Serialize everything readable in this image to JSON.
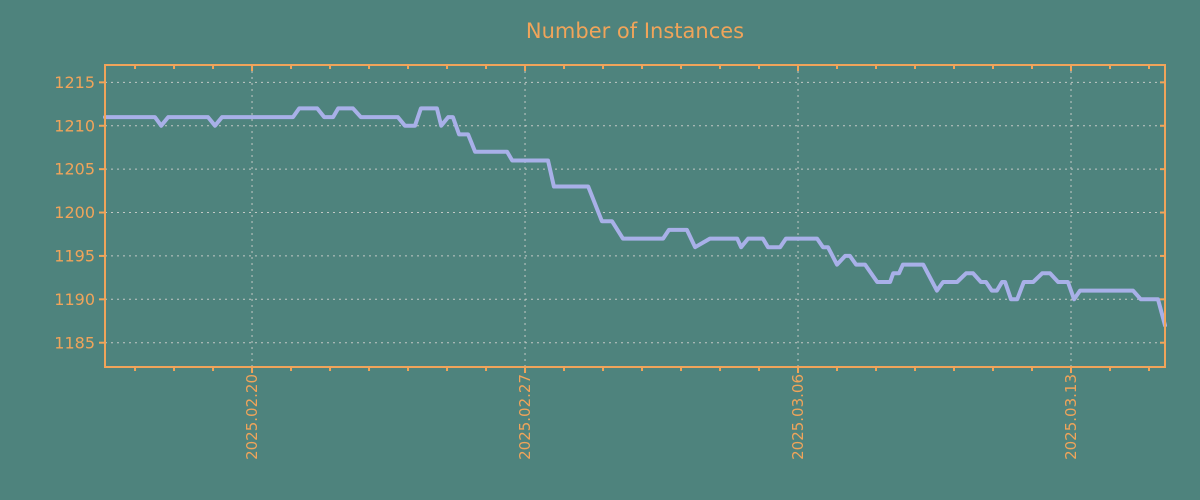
{
  "colors": {
    "background": "#4e837d",
    "accent_orange": "#f0a45a",
    "line": "#a8b0e8",
    "grid": "#c3c8c5"
  },
  "chart_data": {
    "type": "line",
    "title": "Number of Instances",
    "xlabel": "",
    "ylabel": "",
    "x_unit": "days relative to 2025.02.20",
    "xlim": [
      -3.77,
      23.41
    ],
    "ylim": [
      1182.2,
      1217.0
    ],
    "grid": true,
    "legend": false,
    "x_major_ticks": [
      {
        "day": 0,
        "label": "2025.02.20"
      },
      {
        "day": 7,
        "label": "2025.02.27"
      },
      {
        "day": 14,
        "label": "2025.03.06"
      },
      {
        "day": 21,
        "label": "2025.03.13"
      }
    ],
    "x_minor_tick_step": 1,
    "y_ticks": [
      1185,
      1190,
      1195,
      1200,
      1205,
      1210,
      1215
    ],
    "series": [
      {
        "name": "instances",
        "points": [
          [
            -3.77,
            1211
          ],
          [
            -2.49,
            1211
          ],
          [
            -2.33,
            1210
          ],
          [
            -2.15,
            1211
          ],
          [
            -1.13,
            1211
          ],
          [
            -0.95,
            1210
          ],
          [
            -0.77,
            1211
          ],
          [
            1.05,
            1211
          ],
          [
            1.21,
            1212
          ],
          [
            1.67,
            1212
          ],
          [
            1.85,
            1211
          ],
          [
            2.08,
            1211
          ],
          [
            2.21,
            1212
          ],
          [
            2.59,
            1212
          ],
          [
            2.79,
            1211
          ],
          [
            3.74,
            1211
          ],
          [
            3.92,
            1210
          ],
          [
            4.18,
            1210
          ],
          [
            4.33,
            1212
          ],
          [
            4.74,
            1212
          ],
          [
            4.85,
            1210
          ],
          [
            5.03,
            1211
          ],
          [
            5.15,
            1211
          ],
          [
            5.31,
            1209
          ],
          [
            5.54,
            1209
          ],
          [
            5.72,
            1207
          ],
          [
            6.54,
            1207
          ],
          [
            6.67,
            1206
          ],
          [
            7.59,
            1206
          ],
          [
            7.74,
            1203
          ],
          [
            8.62,
            1203
          ],
          [
            8.97,
            1199
          ],
          [
            9.23,
            1199
          ],
          [
            9.51,
            1197
          ],
          [
            10.54,
            1197
          ],
          [
            10.69,
            1198
          ],
          [
            11.15,
            1198
          ],
          [
            11.36,
            1196
          ],
          [
            11.74,
            1197
          ],
          [
            12.44,
            1197
          ],
          [
            12.54,
            1196
          ],
          [
            12.72,
            1197
          ],
          [
            13.1,
            1197
          ],
          [
            13.23,
            1196
          ],
          [
            13.54,
            1196
          ],
          [
            13.69,
            1197
          ],
          [
            14.49,
            1197
          ],
          [
            14.64,
            1196
          ],
          [
            14.77,
            1196
          ],
          [
            15.0,
            1194
          ],
          [
            15.21,
            1195
          ],
          [
            15.33,
            1195
          ],
          [
            15.49,
            1194
          ],
          [
            15.72,
            1194
          ],
          [
            16.03,
            1192
          ],
          [
            16.36,
            1192
          ],
          [
            16.44,
            1193
          ],
          [
            16.59,
            1193
          ],
          [
            16.69,
            1194
          ],
          [
            17.21,
            1194
          ],
          [
            17.56,
            1191
          ],
          [
            17.72,
            1192
          ],
          [
            18.08,
            1192
          ],
          [
            18.31,
            1193
          ],
          [
            18.49,
            1193
          ],
          [
            18.69,
            1192
          ],
          [
            18.82,
            1192
          ],
          [
            18.97,
            1191
          ],
          [
            19.1,
            1191
          ],
          [
            19.23,
            1192
          ],
          [
            19.31,
            1192
          ],
          [
            19.46,
            1190
          ],
          [
            19.62,
            1190
          ],
          [
            19.79,
            1192
          ],
          [
            20.03,
            1192
          ],
          [
            20.26,
            1193
          ],
          [
            20.46,
            1193
          ],
          [
            20.67,
            1192
          ],
          [
            20.92,
            1192
          ],
          [
            21.08,
            1190
          ],
          [
            21.23,
            1191
          ],
          [
            22.59,
            1191
          ],
          [
            22.79,
            1190
          ],
          [
            23.23,
            1190
          ],
          [
            23.41,
            1187
          ]
        ]
      }
    ]
  }
}
